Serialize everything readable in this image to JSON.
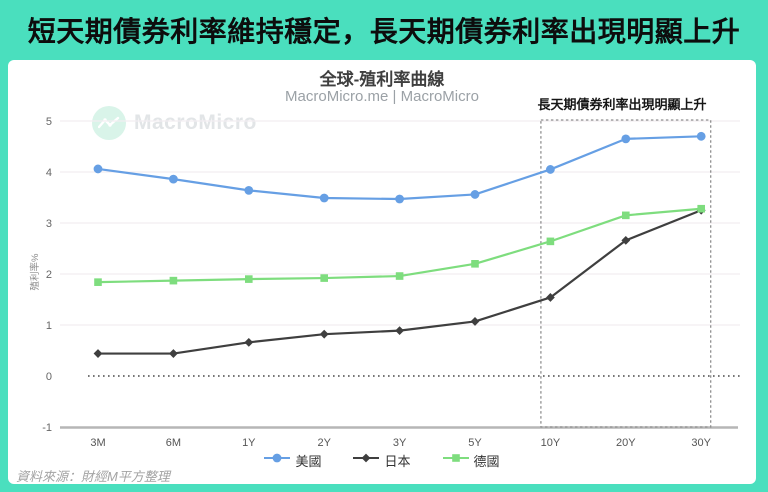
{
  "banner": {
    "title": "短天期債券利率維持穩定，長天期債券利率出現明顯上升",
    "background_color": "#4ADFBE"
  },
  "chart": {
    "title": "全球-殖利率曲線",
    "subtitle": "MacroMicro.me | MacroMicro",
    "watermark": "MacroMicro",
    "annotation": "長天期債券利率出現明顯上升",
    "source": "資料來源：財經M平方整理"
  },
  "chart_data": {
    "type": "line",
    "title": "全球-殖利率曲線",
    "categories": [
      "3M",
      "6M",
      "1Y",
      "2Y",
      "3Y",
      "5Y",
      "10Y",
      "20Y",
      "30Y"
    ],
    "series": [
      {
        "name": "美國",
        "color": "#669FE4",
        "marker": "circle",
        "values": [
          4.06,
          3.86,
          3.64,
          3.49,
          3.47,
          3.56,
          4.05,
          4.65,
          4.7
        ]
      },
      {
        "name": "日本",
        "color": "#3F3F3F",
        "marker": "diamond",
        "values": [
          0.44,
          0.44,
          0.66,
          0.82,
          0.89,
          1.07,
          1.54,
          2.66,
          3.25
        ]
      },
      {
        "name": "德國",
        "color": "#7EDD7E",
        "marker": "square",
        "values": [
          1.84,
          1.87,
          1.9,
          1.92,
          1.96,
          2.2,
          2.64,
          3.15,
          3.28
        ]
      }
    ],
    "ylabel": "殖利率%",
    "ylim": [
      -1,
      5
    ],
    "yticks": [
      5,
      4,
      3,
      2,
      1,
      0,
      -1
    ],
    "zero_line_style": "dotted",
    "grid": true,
    "legend_position": "bottom",
    "highlight_box": {
      "from_category": "10Y",
      "to_category": "30Y",
      "style": "dashed",
      "label": "長天期債券利率出現明顯上升"
    }
  }
}
